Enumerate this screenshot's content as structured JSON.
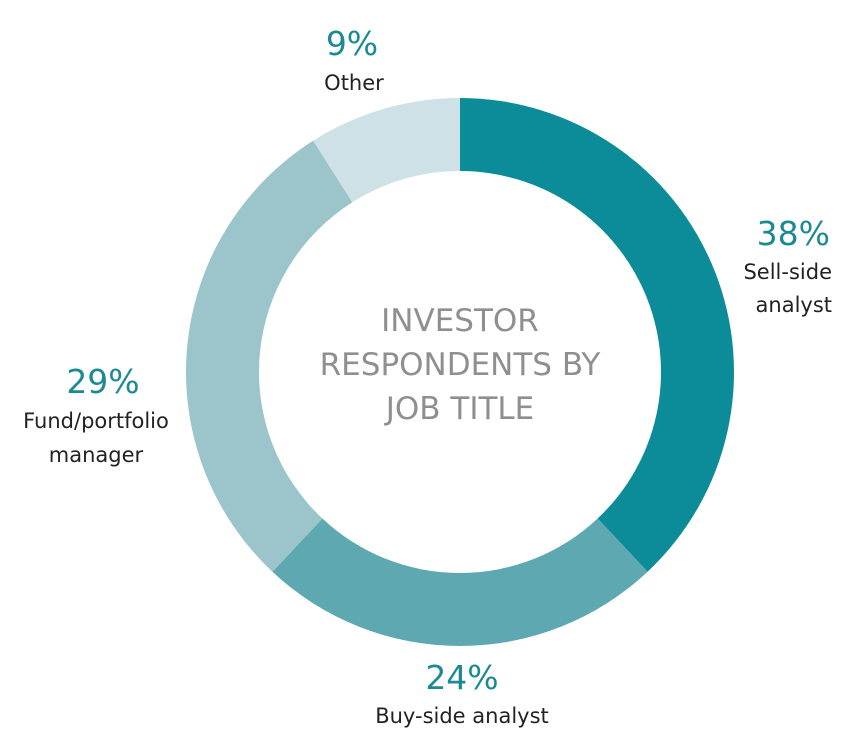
{
  "chart_data": {
    "type": "pie",
    "title": "INVESTOR RESPONDENTS BY JOB TITLE",
    "title_lines": [
      "INVESTOR",
      "RESPONDENTS BY",
      "JOB TITLE"
    ],
    "donut": true,
    "slices": [
      {
        "label": "Sell-side analyst",
        "label_lines": [
          "Sell-side",
          "analyst"
        ],
        "percent_label": "38%",
        "value": 38,
        "color": "#0b8c98"
      },
      {
        "label": "Buy-side analyst",
        "label_lines": [
          "Buy-side analyst"
        ],
        "percent_label": "24%",
        "value": 24,
        "color": "#5ea8b1"
      },
      {
        "label": "Fund/portfolio manager",
        "label_lines": [
          "Fund/portfolio",
          "manager"
        ],
        "percent_label": "29%",
        "value": 29,
        "color": "#9bc5cb"
      },
      {
        "label": "Other",
        "label_lines": [
          "Other"
        ],
        "percent_label": "9%",
        "value": 9,
        "color": "#cde1e7"
      }
    ],
    "percent_color": "#1b8a93",
    "label_color": "#222222",
    "center_text_color": "#8f8f8f"
  }
}
